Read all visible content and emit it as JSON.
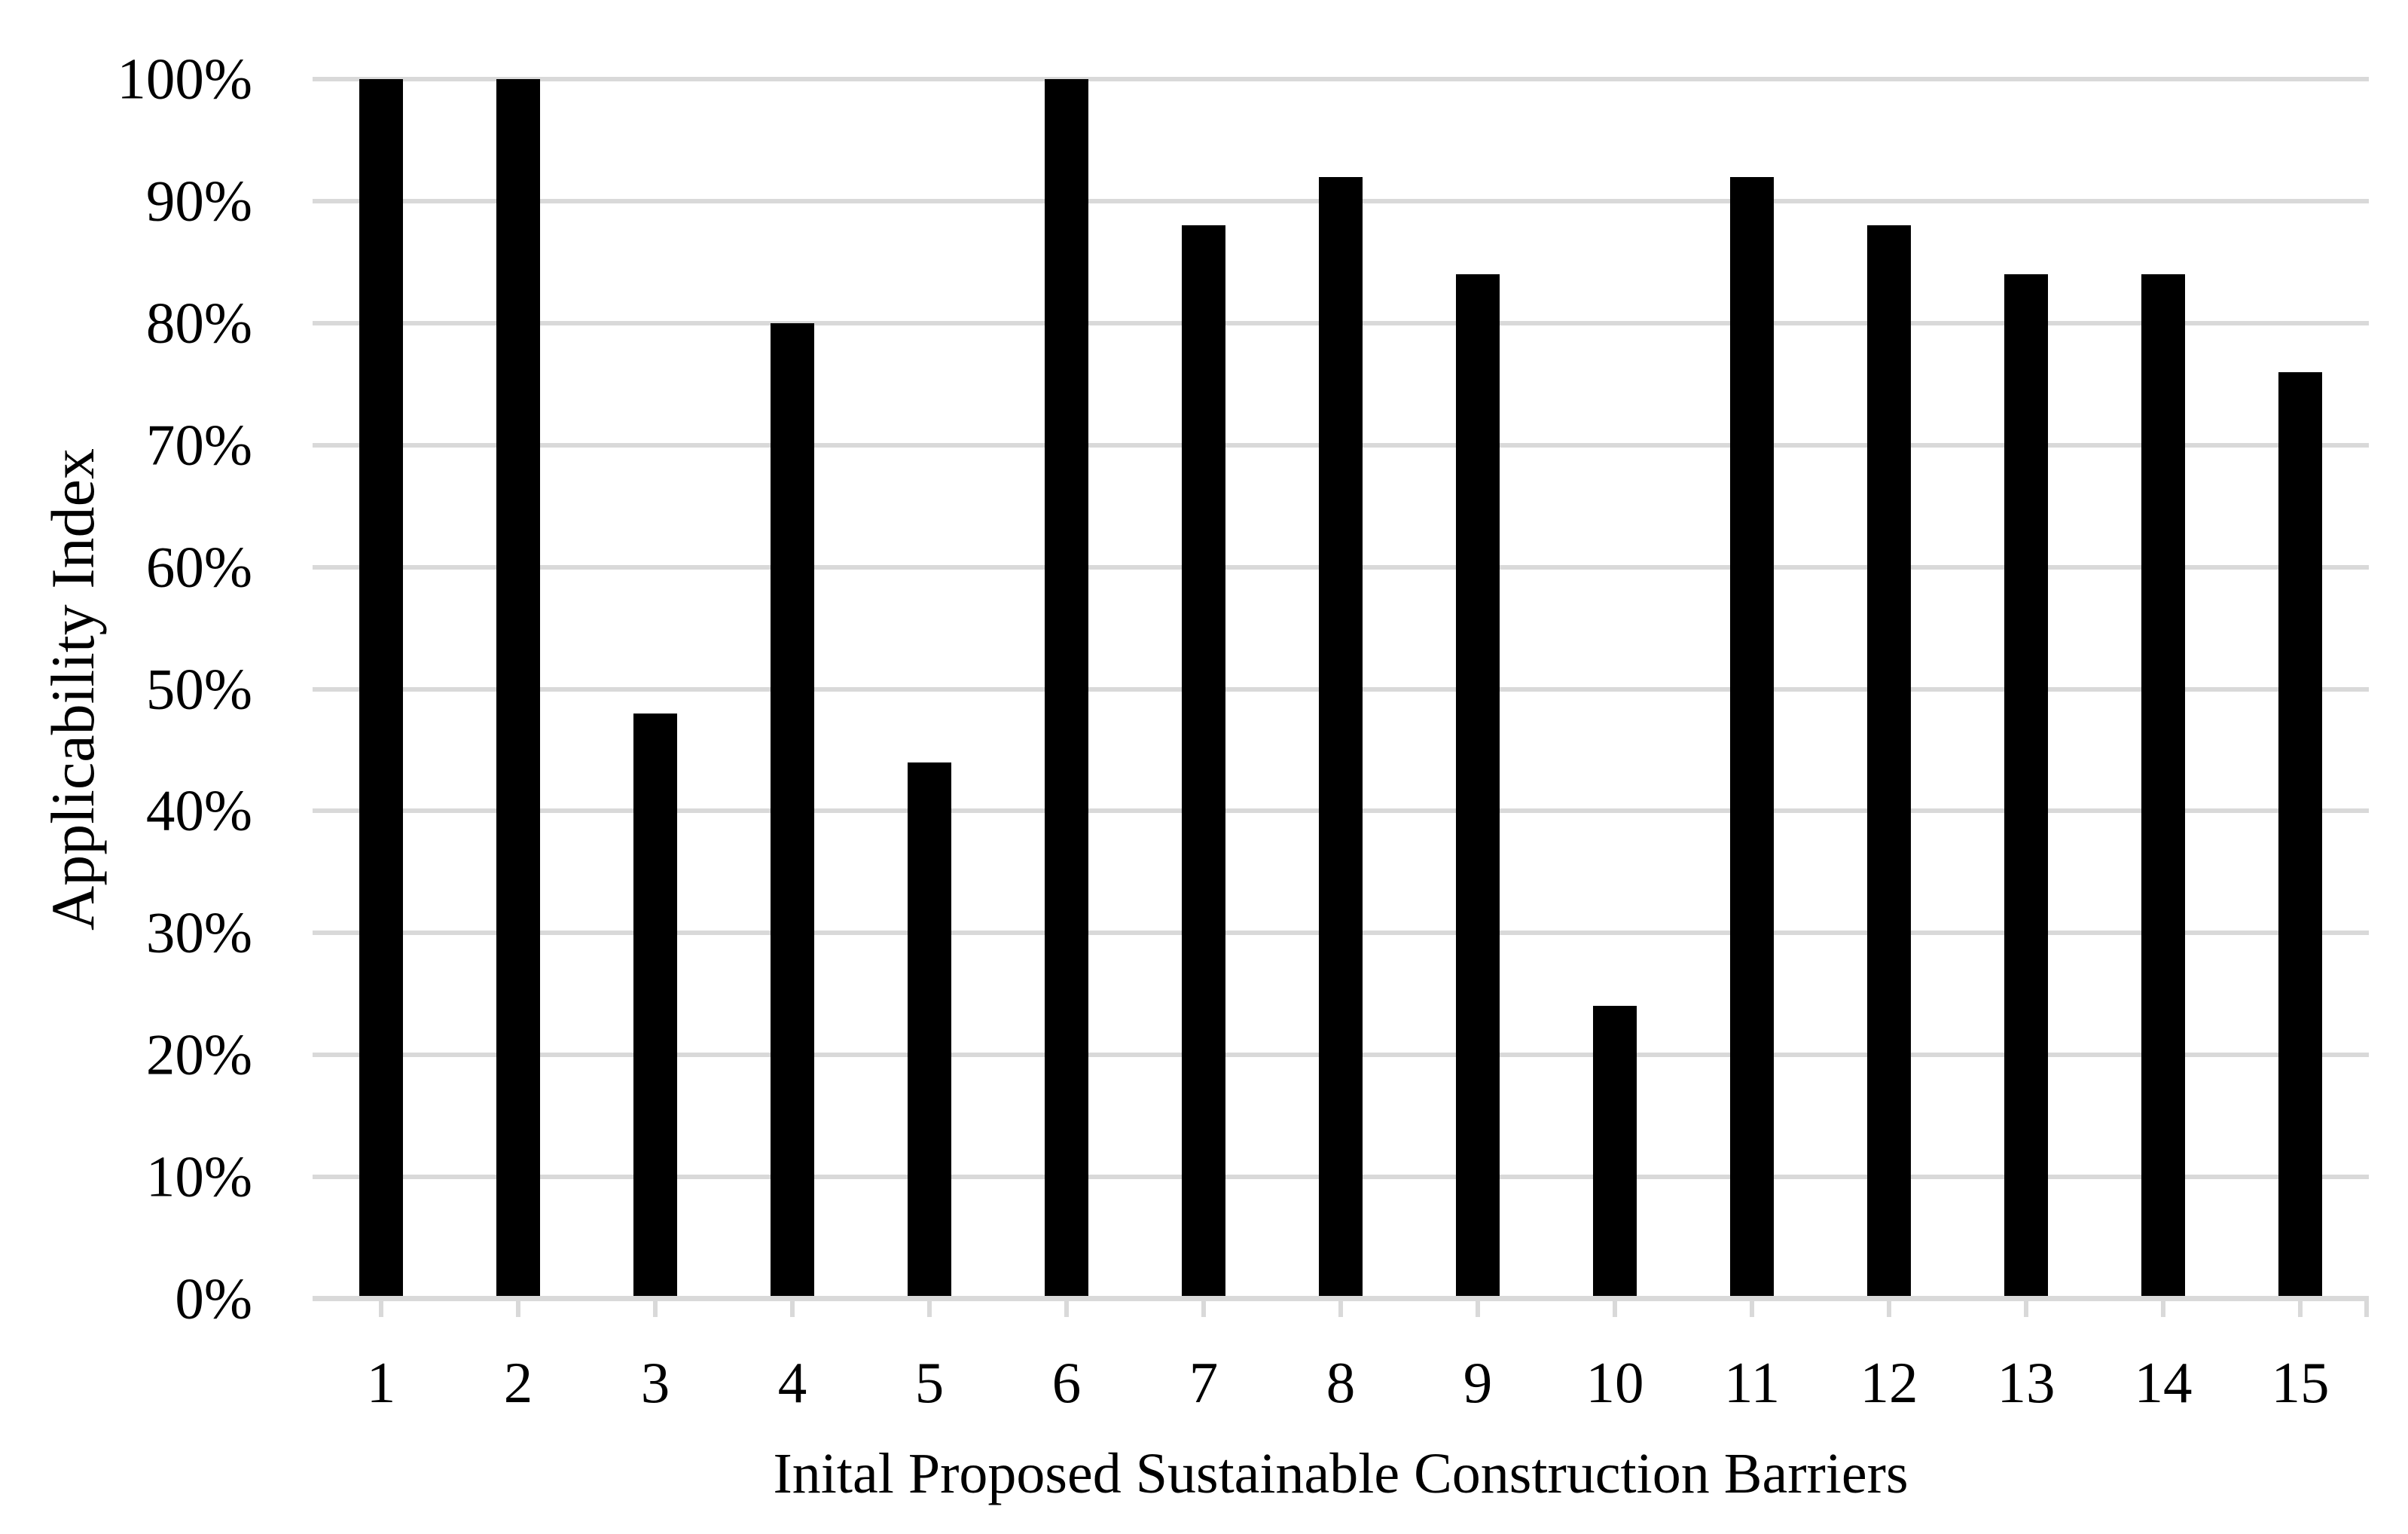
{
  "chart_data": {
    "type": "bar",
    "title": "",
    "xlabel": "Inital Proposed Sustainable Construction Barriers",
    "ylabel": "Applicability Index",
    "categories": [
      "1",
      "2",
      "3",
      "4",
      "5",
      "6",
      "7",
      "8",
      "9",
      "10",
      "11",
      "12",
      "13",
      "14",
      "15"
    ],
    "values": [
      100,
      100,
      48,
      80,
      44,
      100,
      88,
      92,
      84,
      24,
      92,
      88,
      84,
      84,
      76
    ],
    "unit": "%",
    "ylim": [
      0,
      100
    ],
    "ytick_step": 10,
    "ytick_labels": [
      "0%",
      "10%",
      "20%",
      "30%",
      "40%",
      "50%",
      "60%",
      "70%",
      "80%",
      "90%",
      "100%"
    ],
    "grid": true,
    "legend": false,
    "bar_color": "#000000",
    "gridline_color": "#d9d9d9",
    "tick_color": "#d9d9d9",
    "text_color": "#000000",
    "background_color": "#ffffff"
  }
}
